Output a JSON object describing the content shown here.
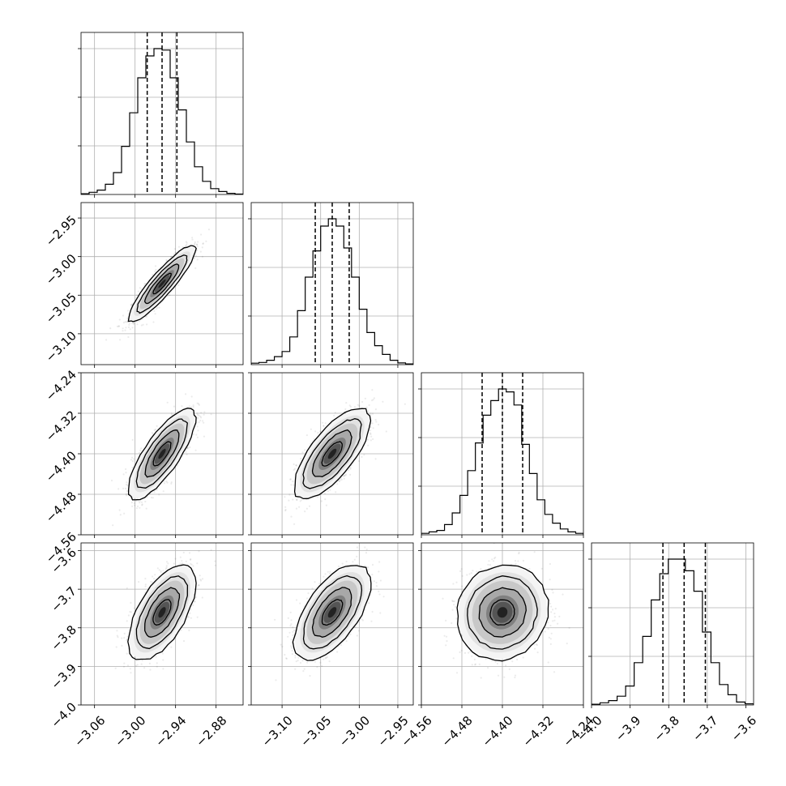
{
  "chart_data": {
    "type": "corner",
    "n_params": 4,
    "grid": true,
    "params": [
      {
        "mean": -2.96,
        "sd": 0.022,
        "range": [
          -3.08,
          -2.84
        ],
        "ticks": [
          -3.06,
          -3.0,
          -2.94,
          -2.88
        ],
        "tick_labels": [
          "−3.06",
          "−3.00",
          "−2.94",
          "−2.88"
        ],
        "quantiles": [
          -2.982,
          -2.96,
          -2.938
        ],
        "hist": [
          0.005,
          0.015,
          0.03,
          0.07,
          0.15,
          0.33,
          0.56,
          0.8,
          0.95,
          1.0,
          0.99,
          0.8,
          0.58,
          0.36,
          0.19,
          0.09,
          0.04,
          0.02,
          0.008,
          0.003
        ]
      },
      {
        "mean": -3.035,
        "sd": 0.022,
        "range": [
          -3.14,
          -2.93
        ],
        "ticks": [
          -3.1,
          -3.05,
          -3.0,
          -2.95
        ],
        "tick_labels": [
          "−3.10",
          "−3.05",
          "−3.00",
          "−2.95"
        ],
        "quantiles": [
          -3.057,
          -3.035,
          -3.013
        ],
        "hist": [
          0.01,
          0.015,
          0.03,
          0.055,
          0.09,
          0.19,
          0.37,
          0.6,
          0.78,
          0.95,
          1.0,
          0.95,
          0.8,
          0.6,
          0.38,
          0.22,
          0.13,
          0.07,
          0.03,
          0.012,
          0.005
        ]
      },
      {
        "mean": -4.4,
        "sd": 0.04,
        "range": [
          -4.56,
          -4.24
        ],
        "ticks": [
          -4.56,
          -4.48,
          -4.4,
          -4.32,
          -4.24
        ],
        "tick_labels": [
          "−4.56",
          "−4.48",
          "−4.40",
          "−4.32",
          "−4.24"
        ],
        "quantiles": [
          -4.44,
          -4.4,
          -4.36
        ],
        "hist": [
          0.01,
          0.02,
          0.03,
          0.07,
          0.15,
          0.27,
          0.44,
          0.63,
          0.82,
          0.92,
          1.0,
          0.98,
          0.89,
          0.62,
          0.42,
          0.24,
          0.14,
          0.08,
          0.04,
          0.02,
          0.01
        ]
      },
      {
        "mean": -3.76,
        "sd": 0.055,
        "range": [
          -4.0,
          -3.58
        ],
        "ticks": [
          -4.0,
          -3.9,
          -3.8,
          -3.7,
          -3.6
        ],
        "tick_labels": [
          "−4.0",
          "−3.9",
          "−3.8",
          "−3.7",
          "−3.6"
        ],
        "quantiles": [
          -3.815,
          -3.76,
          -3.705
        ],
        "hist": [
          0.005,
          0.015,
          0.03,
          0.06,
          0.13,
          0.29,
          0.47,
          0.72,
          0.9,
          1.0,
          1.0,
          0.92,
          0.78,
          0.5,
          0.29,
          0.14,
          0.07,
          0.02,
          0.008
        ]
      }
    ],
    "correlations": [
      [
        1.0,
        0.9,
        0.78,
        0.6
      ],
      [
        0.9,
        1.0,
        0.72,
        0.6
      ],
      [
        0.78,
        0.72,
        1.0,
        0.08
      ],
      [
        0.6,
        0.6,
        0.08,
        1.0
      ]
    ],
    "contour_levels_sigma": [
      0.5,
      1.0,
      1.5,
      2.0
    ]
  }
}
